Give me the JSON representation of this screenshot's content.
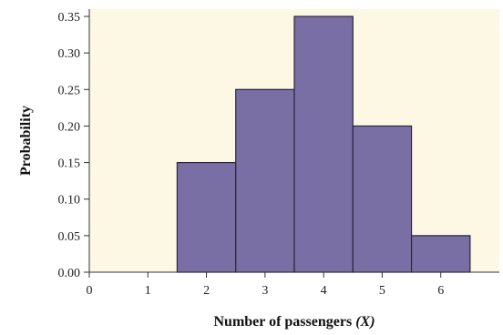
{
  "chart_data": {
    "type": "bar",
    "x": [
      2,
      3,
      4,
      5,
      6
    ],
    "values": [
      0.15,
      0.25,
      0.35,
      0.2,
      0.05
    ],
    "title": "",
    "xlabel_main": "Number of passengers ",
    "xlabel_var": "(X)",
    "ylabel": "Probability",
    "xlim": [
      0,
      7
    ],
    "ylim": [
      0,
      0.36
    ],
    "x_ticks": [
      "0",
      "1",
      "2",
      "3",
      "4",
      "5",
      "6"
    ],
    "y_ticks": [
      "0.00",
      "0.05",
      "0.10",
      "0.15",
      "0.20",
      "0.25",
      "0.30",
      "0.35"
    ],
    "y_tick_values": [
      0.0,
      0.05,
      0.1,
      0.15,
      0.2,
      0.25,
      0.3,
      0.35
    ],
    "bar_width": 1,
    "grid": false,
    "plot_background": "#fdf8e3",
    "bar_color": "#7a6fa4",
    "bar_edge_color": "#2a2540"
  }
}
